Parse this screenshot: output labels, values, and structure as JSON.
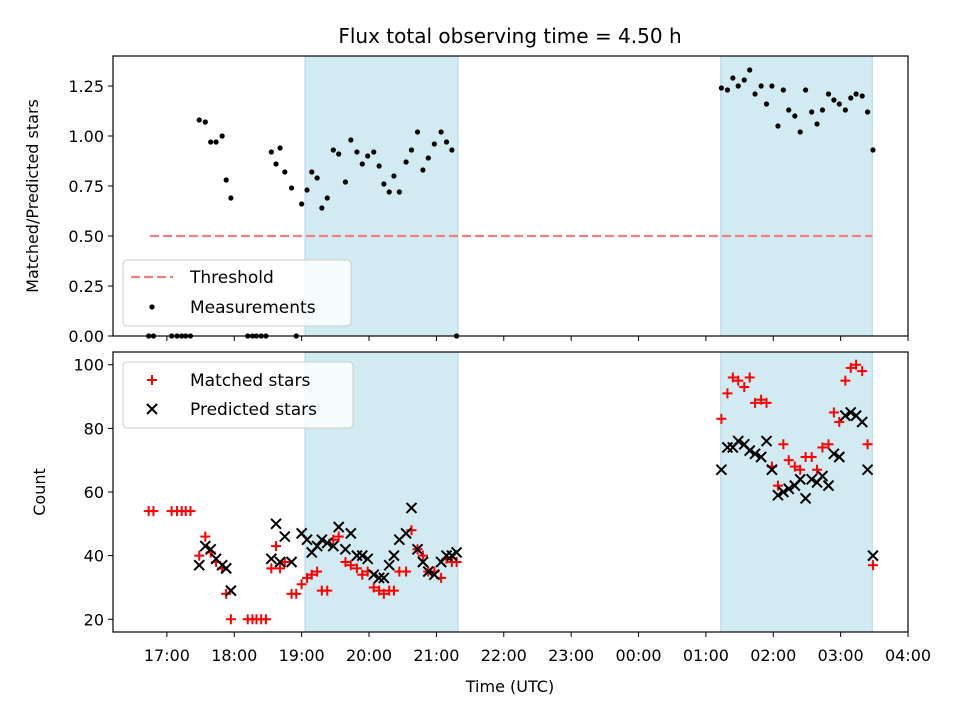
{
  "chart_data": {
    "title": "Flux total observing time = 4.50 h",
    "xlabel": "Time (UTC)",
    "xticks": [
      "17:00",
      "18:00",
      "19:00",
      "20:00",
      "21:00",
      "22:00",
      "23:00",
      "00:00",
      "01:00",
      "02:00",
      "03:00",
      "04:00"
    ],
    "xlim_hours": [
      16.2,
      28.0
    ],
    "shaded_intervals_hours": [
      [
        19.05,
        21.32
      ],
      [
        25.22,
        27.47
      ]
    ],
    "shade_color": "#add8e6",
    "panels": [
      {
        "id": "top",
        "type": "scatter",
        "ylabel": "Matched/Predicted stars",
        "ylim": [
          0,
          1.4
        ],
        "yticks": [
          "0.00",
          "0.25",
          "0.50",
          "0.75",
          "1.00",
          "1.25"
        ],
        "legend": {
          "placement": "lower-left",
          "entries": [
            "Threshold",
            "Measurements"
          ]
        },
        "threshold": {
          "name": "Threshold",
          "value": 0.5,
          "x_range_hours": [
            16.75,
            27.47
          ],
          "color": "#f08080"
        },
        "series": [
          {
            "name": "Measurements",
            "marker": "dot",
            "color": "#000000",
            "x": [
              16.73,
              16.8,
              17.07,
              17.15,
              17.22,
              17.28,
              17.35,
              17.48,
              17.57,
              17.65,
              17.73,
              17.82,
              17.88,
              17.95,
              18.2,
              18.27,
              18.33,
              18.4,
              18.47,
              18.55,
              18.62,
              18.68,
              18.75,
              18.85,
              18.92,
              19.0,
              19.08,
              19.15,
              19.23,
              19.3,
              19.38,
              19.47,
              19.55,
              19.65,
              19.73,
              19.82,
              19.9,
              19.98,
              20.07,
              20.15,
              20.22,
              20.3,
              20.37,
              20.45,
              20.55,
              20.63,
              20.72,
              20.8,
              20.88,
              20.97,
              21.07,
              21.15,
              21.23,
              21.3,
              25.23,
              25.32,
              25.4,
              25.48,
              25.57,
              25.65,
              25.73,
              25.82,
              25.9,
              25.98,
              26.07,
              26.15,
              26.23,
              26.32,
              26.4,
              26.48,
              26.57,
              26.65,
              26.73,
              26.82,
              26.9,
              26.98,
              27.07,
              27.15,
              27.23,
              27.32,
              27.4,
              27.48
            ],
            "y": [
              0,
              0,
              0,
              0,
              0,
              0,
              0,
              1.08,
              1.07,
              0.97,
              0.97,
              1.0,
              0.78,
              0.69,
              0,
              0,
              0,
              0,
              0,
              0.92,
              0.86,
              0.94,
              0.82,
              0.74,
              0,
              0.66,
              0.73,
              0.82,
              0.79,
              0.64,
              0.69,
              0.93,
              0.91,
              0.77,
              0.98,
              0.92,
              0.86,
              0.9,
              0.92,
              0.85,
              0.76,
              0.72,
              0.8,
              0.72,
              0.87,
              0.93,
              1.02,
              0.83,
              0.89,
              0.96,
              1.02,
              0.97,
              0.93,
              0,
              1.24,
              1.23,
              1.29,
              1.25,
              1.28,
              1.33,
              1.21,
              1.25,
              1.16,
              1.25,
              1.05,
              1.23,
              1.13,
              1.1,
              1.02,
              1.23,
              1.12,
              1.06,
              1.13,
              1.21,
              1.18,
              1.16,
              1.13,
              1.19,
              1.21,
              1.2,
              1.12,
              0.93
            ]
          }
        ]
      },
      {
        "id": "bottom",
        "type": "scatter",
        "ylabel": "Count",
        "ylim": [
          16,
          104
        ],
        "yticks": [
          "20",
          "40",
          "60",
          "80",
          "100"
        ],
        "legend": {
          "placement": "upper-left",
          "entries": [
            "Matched stars",
            "Predicted stars"
          ]
        },
        "series": [
          {
            "name": "Matched stars",
            "marker": "plus",
            "color": "#ff0000",
            "x": [
              16.73,
              16.8,
              17.07,
              17.15,
              17.22,
              17.28,
              17.35,
              17.48,
              17.57,
              17.65,
              17.73,
              17.82,
              17.88,
              17.95,
              18.2,
              18.27,
              18.33,
              18.4,
              18.47,
              18.55,
              18.62,
              18.68,
              18.75,
              18.85,
              18.92,
              19.0,
              19.08,
              19.15,
              19.23,
              19.3,
              19.38,
              19.47,
              19.55,
              19.65,
              19.73,
              19.82,
              19.9,
              19.98,
              20.07,
              20.15,
              20.22,
              20.3,
              20.37,
              20.45,
              20.55,
              20.63,
              20.72,
              20.8,
              20.88,
              20.97,
              21.07,
              21.15,
              21.23,
              21.3,
              25.23,
              25.32,
              25.4,
              25.48,
              25.57,
              25.65,
              25.73,
              25.82,
              25.9,
              25.98,
              26.07,
              26.15,
              26.23,
              26.32,
              26.4,
              26.48,
              26.57,
              26.65,
              26.73,
              26.82,
              26.9,
              26.98,
              27.07,
              27.15,
              27.23,
              27.32,
              27.4,
              27.48
            ],
            "y": [
              54,
              54,
              54,
              54,
              54,
              54,
              54,
              40,
              46,
              41,
              38,
              36,
              28,
              20,
              20,
              20,
              20,
              20,
              20,
              36,
              43,
              36,
              38,
              28,
              28,
              31,
              33,
              34,
              35,
              29,
              29,
              45,
              46,
              38,
              37,
              36,
              34,
              35,
              30,
              29,
              28,
              29,
              29,
              35,
              35,
              48,
              42,
              40,
              35,
              35,
              33,
              39,
              38,
              38,
              83,
              91,
              96,
              95,
              93,
              96,
              88,
              89,
              88,
              68,
              62,
              75,
              70,
              68,
              67,
              71,
              71,
              67,
              74,
              75,
              85,
              82,
              95,
              99,
              100,
              98,
              75,
              37
            ]
          },
          {
            "name": "Predicted stars",
            "marker": "x",
            "color": "#000000",
            "x": [
              17.48,
              17.57,
              17.65,
              17.73,
              17.82,
              17.88,
              17.95,
              18.55,
              18.62,
              18.68,
              18.75,
              18.85,
              19.0,
              19.08,
              19.15,
              19.23,
              19.3,
              19.38,
              19.47,
              19.55,
              19.65,
              19.73,
              19.82,
              19.9,
              19.98,
              20.07,
              20.15,
              20.22,
              20.3,
              20.37,
              20.45,
              20.55,
              20.63,
              20.72,
              20.8,
              20.88,
              20.97,
              21.07,
              21.15,
              21.23,
              21.3,
              25.23,
              25.32,
              25.4,
              25.48,
              25.57,
              25.65,
              25.73,
              25.82,
              25.9,
              25.98,
              26.07,
              26.15,
              26.23,
              26.32,
              26.4,
              26.48,
              26.57,
              26.65,
              26.73,
              26.82,
              26.9,
              26.98,
              27.07,
              27.15,
              27.23,
              27.32,
              27.4,
              27.48
            ],
            "y": [
              37,
              43,
              42,
              39,
              37,
              36,
              29,
              39,
              50,
              38,
              46,
              38,
              47,
              45,
              41,
              43,
              45,
              44,
              43,
              49,
              42,
              47,
              40,
              40,
              39,
              34,
              33,
              33,
              37,
              40,
              45,
              47,
              55,
              42,
              38,
              35,
              34,
              38,
              40,
              40,
              41,
              67,
              74,
              74,
              76,
              75,
              73,
              72,
              71,
              76,
              67,
              59,
              60,
              61,
              62,
              64,
              58,
              64,
              63,
              65,
              62,
              72,
              71,
              84,
              85,
              84,
              82,
              67,
              40
            ]
          }
        ]
      }
    ]
  }
}
